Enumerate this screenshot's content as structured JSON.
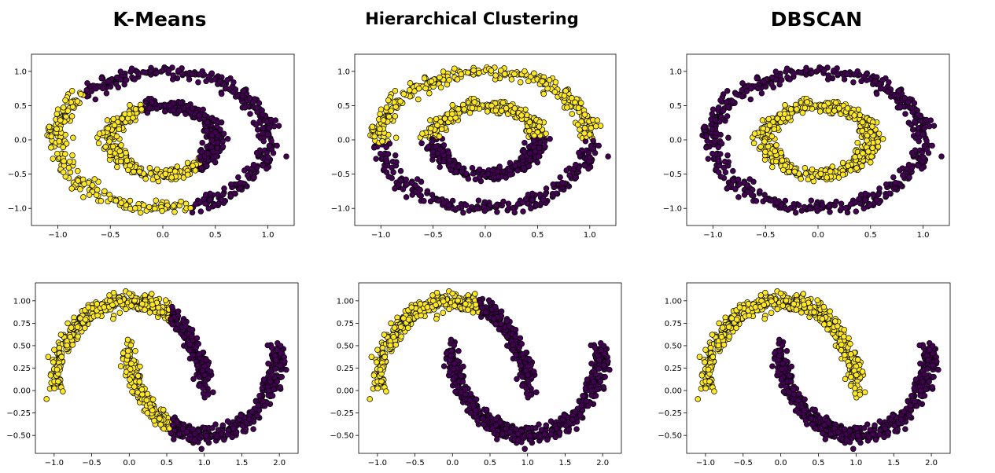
{
  "titles": [
    "K-Means",
    "Hierarchical Clustering",
    "DBSCAN"
  ],
  "colors": {
    "yellow": "#fde725",
    "purple": "#440154",
    "edge": "#000000"
  },
  "chart_data": [
    {
      "type": "scatter",
      "dataset": "circles",
      "method": "K-Means",
      "title": "K-Means",
      "xlim": [
        -1.25,
        1.25
      ],
      "ylim": [
        -1.25,
        1.25
      ],
      "xticks": [
        -1.0,
        -0.5,
        0.0,
        0.5,
        1.0
      ],
      "yticks": [
        -1.0,
        -0.5,
        0.0,
        0.5,
        1.0
      ],
      "xtick_labels": [
        "−1.0",
        "−0.5",
        "0.0",
        "0.5",
        "1.0"
      ],
      "ytick_labels": [
        "−1.0",
        "−0.5",
        "0.0",
        "0.5",
        "1.0"
      ],
      "clusters": [
        {
          "color": "#fde725",
          "description": "left portions of both rings (x < ~0.25 on outer lower arc and left side; inner ring left/bottom half)"
        },
        {
          "color": "#440154",
          "description": "right portions of both rings including top of outer ring and right of inner ring"
        }
      ],
      "grid": false
    },
    {
      "type": "scatter",
      "dataset": "circles",
      "method": "Hierarchical Clustering",
      "title": "Hierarchical Clustering",
      "xlim": [
        -1.25,
        1.25
      ],
      "ylim": [
        -1.25,
        1.25
      ],
      "xticks": [
        -1.0,
        -0.5,
        0.0,
        0.5,
        1.0
      ],
      "yticks": [
        -1.0,
        -0.5,
        0.0,
        0.5,
        1.0
      ],
      "xtick_labels": [
        "−1.0",
        "−0.5",
        "0.0",
        "0.5",
        "1.0"
      ],
      "ytick_labels": [
        "−1.0",
        "−0.5",
        "0.0",
        "0.5",
        "1.0"
      ],
      "clusters": [
        {
          "color": "#fde725",
          "description": "upper halves of both rings"
        },
        {
          "color": "#440154",
          "description": "lower halves of both rings"
        }
      ],
      "grid": false
    },
    {
      "type": "scatter",
      "dataset": "circles",
      "method": "DBSCAN",
      "title": "DBSCAN",
      "xlim": [
        -1.25,
        1.25
      ],
      "ylim": [
        -1.25,
        1.25
      ],
      "xticks": [
        -1.0,
        -0.5,
        0.0,
        0.5,
        1.0
      ],
      "yticks": [
        -1.0,
        -0.5,
        0.0,
        0.5,
        1.0
      ],
      "xtick_labels": [
        "−1.0",
        "−0.5",
        "0.0",
        "0.5",
        "1.0"
      ],
      "ytick_labels": [
        "−1.0",
        "−0.5",
        "0.0",
        "0.5",
        "1.0"
      ],
      "clusters": [
        {
          "color": "#fde725",
          "description": "inner ring (radius ~0.5)"
        },
        {
          "color": "#440154",
          "description": "outer ring (radius ~1.0)"
        }
      ],
      "grid": false
    },
    {
      "type": "scatter",
      "dataset": "moons",
      "method": "K-Means",
      "xlim": [
        -1.25,
        2.25
      ],
      "ylim": [
        -0.7,
        1.2
      ],
      "xticks": [
        -1.0,
        -0.5,
        0.0,
        0.5,
        1.0,
        1.5,
        2.0
      ],
      "yticks": [
        -0.5,
        -0.25,
        0.0,
        0.25,
        0.5,
        0.75,
        1.0
      ],
      "xtick_labels": [
        "−1.0",
        "−0.5",
        "0.0",
        "0.5",
        "1.0",
        "1.5",
        "2.0"
      ],
      "ytick_labels": [
        "−0.50",
        "−0.25",
        "0.00",
        "0.25",
        "0.50",
        "0.75",
        "1.00"
      ],
      "clusters": [
        {
          "color": "#fde725",
          "description": "points with x < ~0.55 (most of upper moon plus left tip of lower moon)"
        },
        {
          "color": "#440154",
          "description": "points with x > ~0.55 (right end of upper moon plus most of lower moon)"
        }
      ],
      "grid": false
    },
    {
      "type": "scatter",
      "dataset": "moons",
      "method": "Hierarchical Clustering",
      "xlim": [
        -1.25,
        2.25
      ],
      "ylim": [
        -0.7,
        1.2
      ],
      "xticks": [
        -1.0,
        -0.5,
        0.0,
        0.5,
        1.0,
        1.5,
        2.0
      ],
      "yticks": [
        -0.5,
        -0.25,
        0.0,
        0.25,
        0.5,
        0.75,
        1.0
      ],
      "xtick_labels": [
        "−1.0",
        "−0.5",
        "0.0",
        "0.5",
        "1.0",
        "1.5",
        "2.0"
      ],
      "ytick_labels": [
        "−0.50",
        "−0.25",
        "0.00",
        "0.25",
        "0.50",
        "0.75",
        "1.00"
      ],
      "clusters": [
        {
          "color": "#fde725",
          "description": "left/top part of upper moon (x < ~0.35)"
        },
        {
          "color": "#440154",
          "description": "right end of upper moon plus entire lower moon"
        }
      ],
      "grid": false
    },
    {
      "type": "scatter",
      "dataset": "moons",
      "method": "DBSCAN",
      "xlim": [
        -1.25,
        2.25
      ],
      "ylim": [
        -0.7,
        1.2
      ],
      "xticks": [
        -1.0,
        -0.5,
        0.0,
        0.5,
        1.0,
        1.5,
        2.0
      ],
      "yticks": [
        -0.5,
        -0.25,
        0.0,
        0.25,
        0.5,
        0.75,
        1.0
      ],
      "xtick_labels": [
        "−1.0",
        "−0.5",
        "0.0",
        "0.5",
        "1.0",
        "1.5",
        "2.0"
      ],
      "ytick_labels": [
        "−0.50",
        "−0.25",
        "0.00",
        "0.25",
        "0.50",
        "0.75",
        "1.00"
      ],
      "clusters": [
        {
          "color": "#fde725",
          "description": "entire upper moon"
        },
        {
          "color": "#440154",
          "description": "entire lower moon"
        }
      ],
      "grid": false
    }
  ]
}
